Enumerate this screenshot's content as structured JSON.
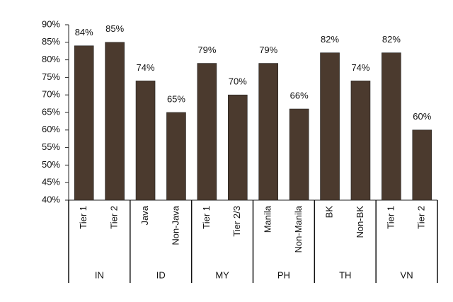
{
  "chart_data": {
    "type": "bar",
    "color": "#4b3a2e",
    "ylim": [
      40,
      90
    ],
    "yticks": [
      {
        "value": 40,
        "label": "40%"
      },
      {
        "value": 45,
        "label": "45%"
      },
      {
        "value": 50,
        "label": "50%"
      },
      {
        "value": 55,
        "label": "55%"
      },
      {
        "value": 60,
        "label": "60%"
      },
      {
        "value": 65,
        "label": "65%"
      },
      {
        "value": 70,
        "label": "70%"
      },
      {
        "value": 75,
        "label": "75%"
      },
      {
        "value": 80,
        "label": "80%"
      },
      {
        "value": 85,
        "label": "85%"
      },
      {
        "value": 90,
        "label": "90%"
      }
    ],
    "groups": [
      {
        "label": "IN",
        "categories": [
          "Tier 1",
          "Tier 2"
        ],
        "values": [
          84,
          85
        ],
        "value_labels": [
          "84%",
          "85%"
        ]
      },
      {
        "label": "ID",
        "categories": [
          "Java",
          "Non-Java"
        ],
        "values": [
          74,
          65
        ],
        "value_labels": [
          "74%",
          "65%"
        ]
      },
      {
        "label": "MY",
        "categories": [
          "Tier 1",
          "Tier 2/3"
        ],
        "values": [
          79,
          70
        ],
        "value_labels": [
          "79%",
          "70%"
        ]
      },
      {
        "label": "PH",
        "categories": [
          "Manila",
          "Non-Manila"
        ],
        "values": [
          79,
          66
        ],
        "value_labels": [
          "79%",
          "66%"
        ]
      },
      {
        "label": "TH",
        "categories": [
          "BK",
          "Non-BK"
        ],
        "values": [
          82,
          74
        ],
        "value_labels": [
          "82%",
          "74%"
        ]
      },
      {
        "label": "VN",
        "categories": [
          "Tier 1",
          "Tier 2"
        ],
        "values": [
          82,
          60
        ],
        "value_labels": [
          "82%",
          "60%"
        ]
      }
    ]
  }
}
